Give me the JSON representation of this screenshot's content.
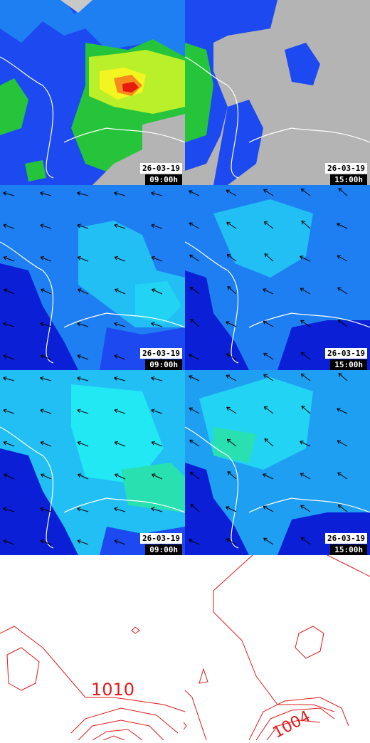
{
  "panels": [
    {
      "id": "precip-0900",
      "date": "26-03-19",
      "time": "09:00h"
    },
    {
      "id": "precip-1500",
      "date": "26-03-19",
      "time": "15:00h"
    },
    {
      "id": "wind1-0900",
      "date": "26-03-19",
      "time": "09:00h"
    },
    {
      "id": "wind1-1500",
      "date": "26-03-19",
      "time": "15:00h"
    },
    {
      "id": "wind2-0900",
      "date": "26-03-19",
      "time": "09:00h"
    },
    {
      "id": "wind2-1500",
      "date": "26-03-19",
      "time": "15:00h"
    }
  ],
  "pressure": {
    "isobar_label_left": "1010",
    "isobar_label_right": "1004"
  },
  "colors": {
    "dry_grey": "#b4b4b4",
    "blue_dark": "#0a1fd6",
    "blue": "#1d49f0",
    "blue_mid": "#1e7ff2",
    "cyan": "#22d3f4",
    "green": "#25c43a",
    "yellow": "#f3f521",
    "orange": "#f78a1b",
    "red": "#e51b0f",
    "isobar": "#e21a1a",
    "coast": "#ffffff"
  }
}
